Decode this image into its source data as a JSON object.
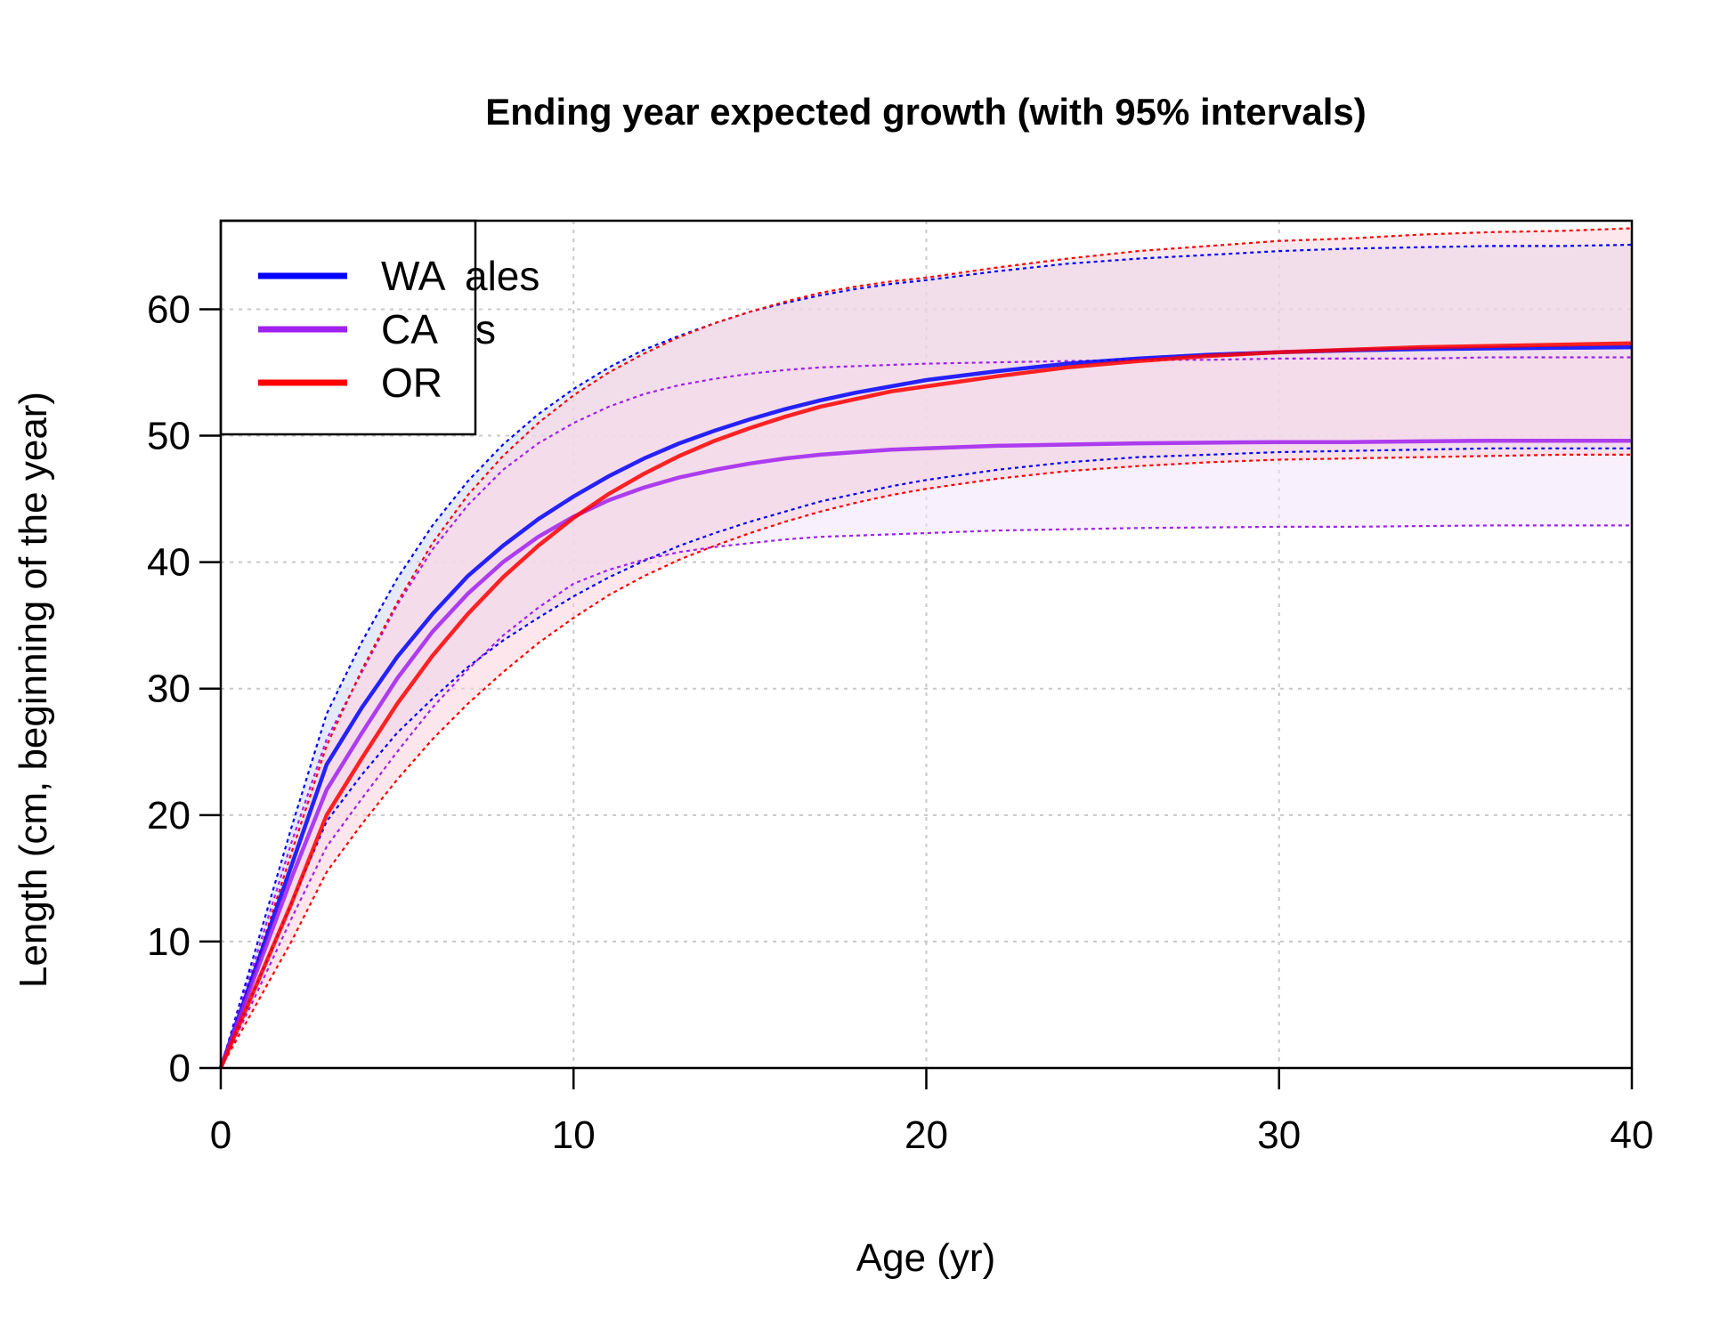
{
  "chart_data": {
    "type": "line",
    "title": "Ending year expected growth (with 95% intervals)",
    "xlabel": "Age (yr)",
    "ylabel": "Length (cm, beginning of the year)",
    "xlim": [
      0,
      40
    ],
    "ylim": [
      0,
      67
    ],
    "xticks": [
      0,
      10,
      20,
      30,
      40
    ],
    "yticks": [
      0,
      10,
      20,
      30,
      40,
      50,
      60
    ],
    "grid": true,
    "legend_placement": "top-left",
    "legend_hidden_text": [
      "ales",
      "s"
    ],
    "x": [
      0,
      1,
      2,
      3,
      4,
      5,
      6,
      7,
      8,
      9,
      10,
      11,
      12,
      13,
      14,
      15,
      16,
      17,
      18,
      19,
      20,
      22,
      24,
      26,
      28,
      30,
      32,
      34,
      36,
      38,
      40
    ],
    "series": [
      {
        "name": "WA",
        "color": "#0000ff",
        "band_color": "#cfd8f5",
        "values": [
          0,
          8,
          16,
          24,
          28.5,
          32.5,
          35.9,
          38.9,
          41.3,
          43.4,
          45.2,
          46.8,
          48.2,
          49.4,
          50.4,
          51.3,
          52.1,
          52.8,
          53.4,
          53.9,
          54.4,
          55.1,
          55.7,
          56.1,
          56.4,
          56.6,
          56.75,
          56.85,
          56.9,
          56.95,
          57.0
        ],
        "upper": [
          0,
          9.5,
          19,
          28,
          33.7,
          38.7,
          42.9,
          46.4,
          49.3,
          51.7,
          53.7,
          55.4,
          56.8,
          57.9,
          58.9,
          59.8,
          60.5,
          61.1,
          61.6,
          62.0,
          62.3,
          63.0,
          63.6,
          64.0,
          64.3,
          64.6,
          64.8,
          64.9,
          65.0,
          65.0,
          65.1
        ],
        "lower": [
          0,
          6.5,
          13,
          19.5,
          23.2,
          26.5,
          29.2,
          31.7,
          33.8,
          35.6,
          37.3,
          38.8,
          40.1,
          41.3,
          42.3,
          43.2,
          44.0,
          44.8,
          45.4,
          46.0,
          46.5,
          47.3,
          47.9,
          48.3,
          48.5,
          48.7,
          48.8,
          48.9,
          49.0,
          49.0,
          49.0
        ]
      },
      {
        "name": "CA",
        "color": "#a020f0",
        "band_color": "#f3e4fb",
        "values": [
          0,
          7.5,
          15,
          22,
          26.5,
          30.8,
          34.5,
          37.5,
          40.0,
          42.0,
          43.6,
          44.9,
          45.9,
          46.7,
          47.3,
          47.8,
          48.2,
          48.5,
          48.7,
          48.9,
          49.0,
          49.2,
          49.3,
          49.4,
          49.45,
          49.5,
          49.5,
          49.55,
          49.6,
          49.6,
          49.6
        ],
        "upper": [
          0,
          8.8,
          17.8,
          26,
          31.3,
          36.6,
          41.0,
          44.5,
          47.3,
          49.4,
          51.0,
          52.3,
          53.3,
          54.0,
          54.5,
          54.9,
          55.2,
          55.4,
          55.5,
          55.6,
          55.7,
          55.8,
          55.9,
          56.0,
          56.0,
          56.1,
          56.1,
          56.1,
          56.2,
          56.2,
          56.2
        ],
        "lower": [
          0,
          5.8,
          11.8,
          17.5,
          21.3,
          25.0,
          28.5,
          31.5,
          34.2,
          36.4,
          38.3,
          39.4,
          40.2,
          40.8,
          41.2,
          41.5,
          41.8,
          42.0,
          42.1,
          42.2,
          42.3,
          42.5,
          42.6,
          42.7,
          42.75,
          42.8,
          42.8,
          42.85,
          42.9,
          42.9,
          42.9
        ]
      },
      {
        "name": "OR",
        "color": "#ff0000",
        "band_color": "#fbd3dc",
        "values": [
          0,
          6.5,
          13,
          20,
          24.5,
          28.8,
          32.6,
          35.9,
          38.8,
          41.3,
          43.5,
          45.4,
          47.0,
          48.4,
          49.6,
          50.6,
          51.5,
          52.3,
          52.9,
          53.5,
          53.9,
          54.7,
          55.4,
          55.9,
          56.3,
          56.6,
          56.8,
          57.0,
          57.1,
          57.2,
          57.3
        ],
        "upper": [
          0,
          8.2,
          17,
          25.5,
          31.5,
          36.8,
          41.5,
          45.3,
          48.4,
          51.0,
          53.2,
          55.0,
          56.5,
          57.8,
          58.9,
          59.8,
          60.6,
          61.3,
          61.8,
          62.2,
          62.5,
          63.3,
          64.0,
          64.6,
          65.0,
          65.4,
          65.6,
          65.9,
          66.1,
          66.2,
          66.4
        ],
        "lower": [
          0,
          5.0,
          10,
          15.5,
          19.3,
          22.8,
          26.0,
          28.8,
          31.3,
          33.6,
          35.6,
          37.4,
          38.9,
          40.2,
          41.3,
          42.3,
          43.2,
          44.0,
          44.7,
          45.3,
          45.8,
          46.6,
          47.2,
          47.6,
          47.9,
          48.1,
          48.2,
          48.3,
          48.4,
          48.5,
          48.5
        ]
      }
    ]
  }
}
